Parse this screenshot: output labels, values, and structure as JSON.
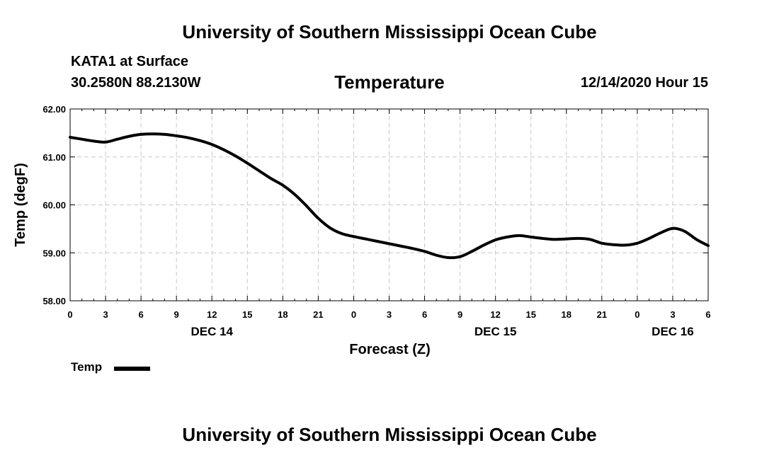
{
  "header": {
    "title": "University of Southern Mississippi Ocean Cube",
    "station": "KATA1 at Surface",
    "coords": "30.2580N 88.2130W",
    "datetime": "12/14/2020 Hour 15"
  },
  "footer": {
    "title": "University of Southern Mississippi Ocean Cube"
  },
  "chart_data": {
    "type": "line",
    "title": "Temperature",
    "xlabel": "Forecast (Z)",
    "ylabel": "Temp (degF)",
    "ylim": [
      58,
      62
    ],
    "y_ticks": [
      "58.00",
      "59.00",
      "60.00",
      "61.00",
      "62.00"
    ],
    "xlim_hours": [
      0,
      54
    ],
    "x_tick_labels": [
      "0",
      "3",
      "6",
      "9",
      "12",
      "15",
      "18",
      "21",
      "0",
      "3",
      "6",
      "9",
      "12",
      "15",
      "18",
      "21",
      "0",
      "3",
      "6"
    ],
    "date_labels": [
      {
        "label": "DEC 14",
        "hour": 12
      },
      {
        "label": "DEC 15",
        "hour": 36
      },
      {
        "label": "DEC 16",
        "hour": 51
      }
    ],
    "grid": true,
    "legend_position": "bottom-left",
    "series": [
      {
        "name": "Temp",
        "color": "#000000",
        "x": [
          0,
          1,
          2,
          3,
          4,
          5,
          6,
          7,
          8,
          9,
          10,
          11,
          12,
          13,
          14,
          15,
          16,
          17,
          18,
          19,
          20,
          21,
          22,
          23,
          24,
          25,
          26,
          27,
          28,
          29,
          30,
          31,
          32,
          33,
          34,
          35,
          36,
          37,
          38,
          39,
          40,
          41,
          42,
          43,
          44,
          45,
          46,
          47,
          48,
          49,
          50,
          51,
          52,
          53,
          54
        ],
        "values": [
          61.41,
          61.37,
          61.33,
          61.31,
          61.37,
          61.43,
          61.47,
          61.48,
          61.47,
          61.44,
          61.4,
          61.34,
          61.26,
          61.15,
          61.02,
          60.87,
          60.71,
          60.55,
          60.41,
          60.22,
          59.98,
          59.72,
          59.52,
          59.4,
          59.34,
          59.29,
          59.24,
          59.19,
          59.14,
          59.09,
          59.03,
          58.95,
          58.9,
          58.92,
          59.03,
          59.16,
          59.27,
          59.33,
          59.36,
          59.33,
          59.3,
          59.28,
          59.29,
          59.3,
          59.28,
          59.2,
          59.17,
          59.16,
          59.2,
          59.3,
          59.42,
          59.51,
          59.45,
          59.28,
          59.15
        ]
      }
    ]
  }
}
